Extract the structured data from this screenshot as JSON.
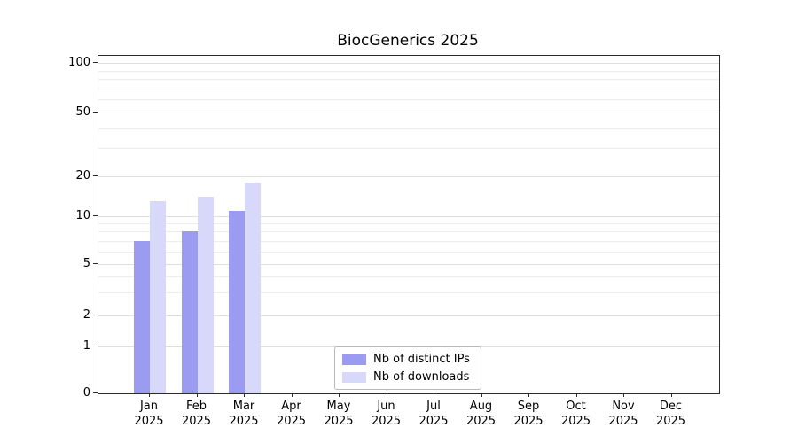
{
  "chart_data": {
    "type": "bar",
    "title": "BiocGenerics 2025",
    "categories": [
      "Jan",
      "Feb",
      "Mar",
      "Apr",
      "May",
      "Jun",
      "Jul",
      "Aug",
      "Sep",
      "Oct",
      "Nov",
      "Dec"
    ],
    "year_label": "2025",
    "series": [
      {
        "name": "Nb of distinct IPs",
        "color": "#9b9bf2",
        "values": [
          7,
          8,
          11,
          null,
          null,
          null,
          null,
          null,
          null,
          null,
          null,
          null
        ]
      },
      {
        "name": "Nb of downloads",
        "color": "#d8d8fa",
        "values": [
          13,
          14,
          18,
          null,
          null,
          null,
          null,
          null,
          null,
          null,
          null,
          null
        ]
      }
    ],
    "yticks": [
      0,
      1,
      2,
      5,
      10,
      20,
      50,
      100
    ],
    "scale": "log",
    "grid": true,
    "legend_position": "bottom-center",
    "xlabel": "",
    "ylabel": ""
  }
}
